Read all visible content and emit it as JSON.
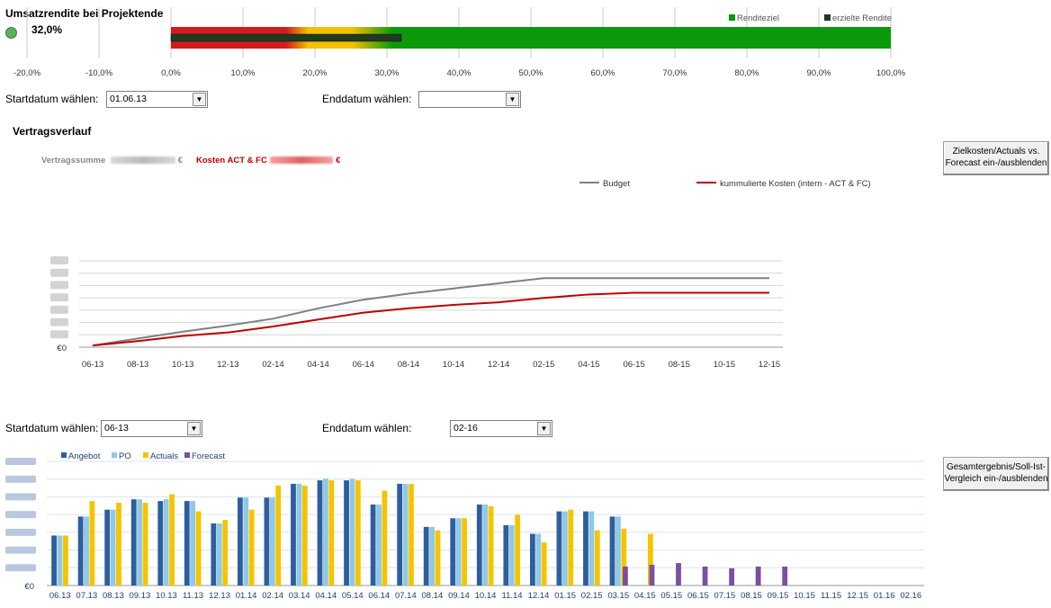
{
  "kpi": {
    "title": "Umsatzrendite bei Projektende",
    "value": "32,0%",
    "value_num": 32.0,
    "legend_target": "Renditeziel",
    "legend_actual": "erzielte Rendite",
    "axis_ticks": [
      "-20,0%",
      "-10,0%",
      "0,0%",
      "10,0%",
      "20,0%",
      "30,0%",
      "40,0%",
      "50,0%",
      "60,0%",
      "70,0%",
      "80,0%",
      "90,0%",
      "100,0%"
    ],
    "colors": {
      "green": "#0c9a0c",
      "red": "#d21c1c",
      "yellow": "#f2c100",
      "dark": "#1f3a1f",
      "indicator": "#4caf50"
    }
  },
  "filter1": {
    "start_label": "Startdatum wählen:",
    "start_value": "01.06.13",
    "end_label": "Enddatum wählen:",
    "end_value": ""
  },
  "contract": {
    "section_title": "Vertragsverlauf",
    "sum_label": "Vertragssumme",
    "cost_label": "Kosten ACT & FC",
    "currency": "€",
    "toggle_button": "Zielkosten/Actuals vs. Forecast ein-/ausblenden"
  },
  "filter2": {
    "start_label": "Startdatum wählen:",
    "start_value": "06-13",
    "end_label": "Enddatum wählen:",
    "end_value": "02-16"
  },
  "result_button": "Gesamtergebnis/Soll-Ist-Vergleich ein-/ausblenden",
  "chart_data": [
    {
      "type": "line",
      "x": [
        "06-13",
        "08-13",
        "10-13",
        "12-13",
        "02-14",
        "04-14",
        "06-14",
        "08-14",
        "10-14",
        "12-14",
        "02-15",
        "04-15",
        "06-15",
        "08-15",
        "10-15",
        "12-15"
      ],
      "series": [
        {
          "name": "Budget",
          "color": "#808080",
          "values": [
            2,
            10,
            18,
            25,
            33,
            45,
            55,
            62,
            68,
            74,
            80,
            80,
            80,
            80,
            80,
            80
          ]
        },
        {
          "name": "kummulierte Kosten (intern - ACT & FC)",
          "color": "#c00000",
          "values": [
            2,
            7,
            13,
            17,
            24,
            32,
            40,
            45,
            49,
            52,
            57,
            61,
            63,
            63,
            63,
            63
          ]
        }
      ],
      "y_zero_label": "€0",
      "ylim": [
        0,
        100
      ]
    },
    {
      "type": "bar",
      "categories": [
        "06.13",
        "07.13",
        "08.13",
        "09.13",
        "10.13",
        "11.13",
        "12.13",
        "01.14",
        "02.14",
        "03.14",
        "04.14",
        "05.14",
        "06.14",
        "07.14",
        "08.14",
        "09.14",
        "10.14",
        "11.14",
        "12.14",
        "01.15",
        "02.15",
        "03.15",
        "04.15",
        "05.15",
        "06.15",
        "07.15",
        "08.15",
        "09.15",
        "10.15",
        "11.15",
        "12.15",
        "01.16",
        "02.16"
      ],
      "series": [
        {
          "name": "Angebot",
          "color": "#2e5e9e",
          "values": [
            29,
            40,
            44,
            50,
            49,
            49,
            36,
            51,
            51,
            59,
            61,
            61,
            47,
            59,
            34,
            39,
            47,
            35,
            30,
            43,
            43,
            40,
            0,
            0,
            0,
            0,
            0,
            0,
            0,
            0,
            0,
            0,
            0
          ]
        },
        {
          "name": "PO",
          "color": "#8fc9e6",
          "values": [
            29,
            40,
            44,
            50,
            50,
            49,
            36,
            51,
            51,
            59,
            62,
            62,
            47,
            59,
            34,
            39,
            47,
            35,
            30,
            43,
            43,
            40,
            0,
            0,
            0,
            0,
            0,
            0,
            0,
            0,
            0,
            0,
            0
          ]
        },
        {
          "name": "Actuals",
          "color": "#f5c400",
          "values": [
            29,
            49,
            48,
            48,
            53,
            43,
            38,
            44,
            58,
            58,
            61,
            61,
            55,
            59,
            32,
            39,
            46,
            41,
            25,
            44,
            32,
            33,
            30,
            0,
            0,
            0,
            0,
            0,
            0,
            0,
            0,
            0,
            0
          ]
        },
        {
          "name": "Forecast",
          "color": "#7b4fa0",
          "values": [
            0,
            0,
            0,
            0,
            0,
            0,
            0,
            0,
            0,
            0,
            0,
            0,
            0,
            0,
            0,
            0,
            0,
            0,
            0,
            0,
            0,
            11,
            12,
            13,
            11,
            10,
            11,
            11,
            0,
            0,
            0,
            0,
            0
          ]
        }
      ],
      "y_zero_label": "€0",
      "ylim": [
        0,
        72
      ]
    }
  ]
}
